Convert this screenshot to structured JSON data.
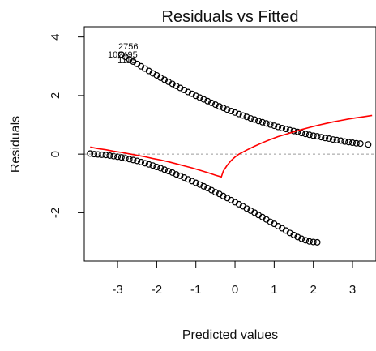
{
  "chart_data": {
    "type": "scatter",
    "title": "Residuals vs Fitted",
    "xlabel": "Predicted values",
    "ylabel": "Residuals",
    "xlim": [
      -3.85,
      3.6
    ],
    "ylim": [
      -3.65,
      4.35
    ],
    "x_ticks": [
      -3,
      -2,
      -1,
      0,
      1,
      2,
      3
    ],
    "x_tick_labels": [
      "-3",
      "-2",
      "-1",
      "0",
      "1",
      "2",
      "3"
    ],
    "y_ticks": [
      -2,
      0,
      2,
      4
    ],
    "y_tick_labels": [
      "-2",
      "0",
      "2",
      "4"
    ],
    "reference_line_y": 0,
    "point_color": "#000000",
    "smooth_color": "#ff0000",
    "reference_color": "#9a9a9a",
    "series": [
      {
        "marker": "open-circle",
        "x": [
          -3.7,
          -3.6,
          -3.5,
          -3.4,
          -3.3,
          -3.2,
          -3.1,
          -3.0,
          -2.9,
          -2.8,
          -2.7,
          -2.6,
          -2.5,
          -2.4,
          -2.3,
          -2.2,
          -2.1,
          -2.0,
          -1.9,
          -1.8,
          -1.7,
          -1.6,
          -1.5,
          -1.4,
          -1.3,
          -1.2,
          -1.1,
          -1.0,
          -0.9,
          -0.8,
          -0.7,
          -0.6,
          -0.5,
          -0.4,
          -0.3,
          -0.2,
          -0.1,
          0.0,
          0.1,
          0.2,
          0.3,
          0.4,
          0.5,
          0.6,
          0.7,
          0.8,
          0.9,
          1.0,
          1.1,
          1.2,
          1.3,
          1.4,
          1.5,
          1.6,
          1.7,
          1.8,
          1.9,
          2.0,
          2.1
        ],
        "y": [
          0.02,
          0.0,
          -0.01,
          -0.02,
          -0.03,
          -0.05,
          -0.07,
          -0.09,
          -0.11,
          -0.14,
          -0.17,
          -0.2,
          -0.23,
          -0.27,
          -0.31,
          -0.35,
          -0.39,
          -0.44,
          -0.48,
          -0.53,
          -0.58,
          -0.63,
          -0.69,
          -0.74,
          -0.8,
          -0.86,
          -0.92,
          -0.98,
          -1.04,
          -1.1,
          -1.16,
          -1.23,
          -1.3,
          -1.36,
          -1.43,
          -1.5,
          -1.57,
          -1.64,
          -1.71,
          -1.78,
          -1.86,
          -1.93,
          -2.0,
          -2.08,
          -2.15,
          -2.23,
          -2.31,
          -2.38,
          -2.46,
          -2.53,
          -2.61,
          -2.69,
          -2.76,
          -2.83,
          -2.89,
          -2.94,
          -2.98,
          -3.0,
          -3.01
        ]
      },
      {
        "marker": "open-circle",
        "x": [
          -2.9,
          -2.8,
          -2.7,
          -2.6,
          -2.5,
          -2.4,
          -2.3,
          -2.2,
          -2.1,
          -2.0,
          -1.9,
          -1.8,
          -1.7,
          -1.6,
          -1.5,
          -1.4,
          -1.3,
          -1.2,
          -1.1,
          -1.0,
          -0.9,
          -0.8,
          -0.7,
          -0.6,
          -0.5,
          -0.4,
          -0.3,
          -0.2,
          -0.1,
          0.0,
          0.1,
          0.2,
          0.3,
          0.4,
          0.5,
          0.6,
          0.7,
          0.8,
          0.9,
          1.0,
          1.1,
          1.2,
          1.3,
          1.4,
          1.5,
          1.6,
          1.7,
          1.8,
          1.9,
          2.0,
          2.1,
          2.2,
          2.3,
          2.4,
          2.5,
          2.6,
          2.7,
          2.8,
          2.9,
          3.0,
          3.1,
          3.2,
          3.4
        ],
        "y": [
          3.4,
          3.32,
          3.24,
          3.16,
          3.08,
          3.0,
          2.92,
          2.84,
          2.76,
          2.69,
          2.61,
          2.54,
          2.47,
          2.4,
          2.33,
          2.26,
          2.19,
          2.12,
          2.06,
          1.99,
          1.93,
          1.87,
          1.81,
          1.75,
          1.69,
          1.63,
          1.58,
          1.52,
          1.47,
          1.42,
          1.37,
          1.32,
          1.27,
          1.22,
          1.18,
          1.13,
          1.09,
          1.05,
          1.01,
          0.97,
          0.93,
          0.89,
          0.86,
          0.82,
          0.79,
          0.76,
          0.72,
          0.69,
          0.66,
          0.63,
          0.61,
          0.58,
          0.55,
          0.53,
          0.5,
          0.48,
          0.46,
          0.43,
          0.41,
          0.39,
          0.37,
          0.36,
          0.33
        ]
      }
    ],
    "smooth_line": {
      "x": [
        -3.7,
        -3.5,
        -3.3,
        -3.1,
        -2.9,
        -2.7,
        -2.5,
        -2.3,
        -2.1,
        -1.9,
        -1.7,
        -1.5,
        -1.3,
        -1.1,
        -0.9,
        -0.7,
        -0.5,
        -0.35,
        -0.3,
        -0.2,
        -0.1,
        0.0,
        0.1,
        0.3,
        0.5,
        0.7,
        0.9,
        1.1,
        1.3,
        1.5,
        1.7,
        1.9,
        2.1,
        2.3,
        2.5,
        2.7,
        2.9,
        3.1,
        3.3,
        3.5
      ],
      "y": [
        0.24,
        0.19,
        0.15,
        0.1,
        0.06,
        0.01,
        -0.04,
        -0.09,
        -0.15,
        -0.2,
        -0.26,
        -0.33,
        -0.4,
        -0.47,
        -0.55,
        -0.63,
        -0.72,
        -0.78,
        -0.58,
        -0.38,
        -0.22,
        -0.1,
        0.0,
        0.14,
        0.27,
        0.39,
        0.5,
        0.6,
        0.68,
        0.76,
        0.84,
        0.91,
        0.98,
        1.04,
        1.1,
        1.15,
        1.2,
        1.24,
        1.28,
        1.32
      ]
    },
    "annotations": [
      {
        "text": "2756",
        "x": -2.98,
        "y": 3.58
      },
      {
        "text": "102495",
        "x": -3.25,
        "y": 3.3
      },
      {
        "text": "1113",
        "x": -3.0,
        "y": 3.1
      }
    ]
  }
}
